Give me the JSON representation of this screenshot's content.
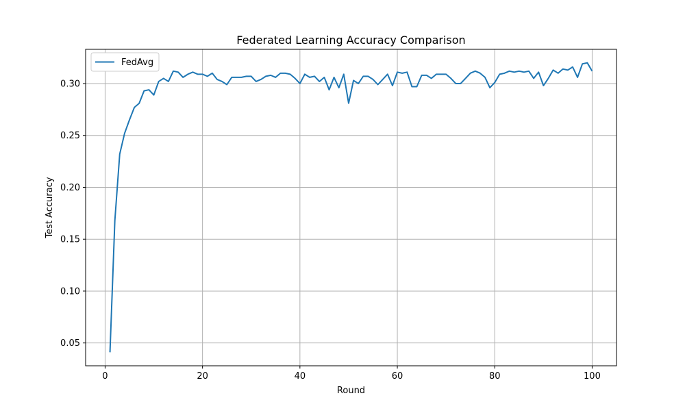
{
  "chart_data": {
    "type": "line",
    "title": "Federated Learning Accuracy Comparison",
    "xlabel": "Round",
    "ylabel": "Test Accuracy",
    "xlim": [
      -4,
      105
    ],
    "ylim": [
      0.028,
      0.333
    ],
    "xticks": [
      0,
      20,
      40,
      60,
      80,
      100
    ],
    "yticks": [
      0.05,
      0.1,
      0.15,
      0.2,
      0.25,
      0.3
    ],
    "ytick_labels": [
      "0.05",
      "0.10",
      "0.15",
      "0.20",
      "0.25",
      "0.30"
    ],
    "grid": true,
    "legend_position": "top-left",
    "series": [
      {
        "name": "FedAvg",
        "color": "#1f77b4",
        "x": [
          1,
          2,
          3,
          4,
          5,
          6,
          7,
          8,
          9,
          10,
          11,
          12,
          13,
          14,
          15,
          16,
          17,
          18,
          19,
          20,
          21,
          22,
          23,
          24,
          25,
          26,
          27,
          28,
          29,
          30,
          31,
          32,
          33,
          34,
          35,
          36,
          37,
          38,
          39,
          40,
          41,
          42,
          43,
          44,
          45,
          46,
          47,
          48,
          49,
          50,
          51,
          52,
          53,
          54,
          55,
          56,
          57,
          58,
          59,
          60,
          61,
          62,
          63,
          64,
          65,
          66,
          67,
          68,
          69,
          70,
          71,
          72,
          73,
          74,
          75,
          76,
          77,
          78,
          79,
          80,
          81,
          82,
          83,
          84,
          85,
          86,
          87,
          88,
          89,
          90,
          91,
          92,
          93,
          94,
          95,
          96,
          97,
          98,
          99,
          100
        ],
        "y": [
          0.041,
          0.168,
          0.232,
          0.252,
          0.265,
          0.277,
          0.281,
          0.293,
          0.294,
          0.289,
          0.302,
          0.305,
          0.302,
          0.312,
          0.311,
          0.306,
          0.309,
          0.311,
          0.309,
          0.309,
          0.307,
          0.31,
          0.304,
          0.302,
          0.299,
          0.306,
          0.306,
          0.306,
          0.307,
          0.307,
          0.302,
          0.304,
          0.307,
          0.308,
          0.306,
          0.31,
          0.31,
          0.309,
          0.305,
          0.3,
          0.309,
          0.306,
          0.307,
          0.302,
          0.306,
          0.294,
          0.306,
          0.296,
          0.309,
          0.281,
          0.303,
          0.3,
          0.307,
          0.307,
          0.304,
          0.299,
          0.304,
          0.309,
          0.298,
          0.311,
          0.31,
          0.311,
          0.297,
          0.297,
          0.308,
          0.308,
          0.305,
          0.309,
          0.309,
          0.309,
          0.305,
          0.3,
          0.3,
          0.305,
          0.31,
          0.312,
          0.31,
          0.306,
          0.296,
          0.301,
          0.309,
          0.31,
          0.312,
          0.311,
          0.312,
          0.311,
          0.312,
          0.305,
          0.311,
          0.298,
          0.305,
          0.313,
          0.31,
          0.314,
          0.313,
          0.316,
          0.306,
          0.319,
          0.32,
          0.312
        ]
      }
    ]
  }
}
